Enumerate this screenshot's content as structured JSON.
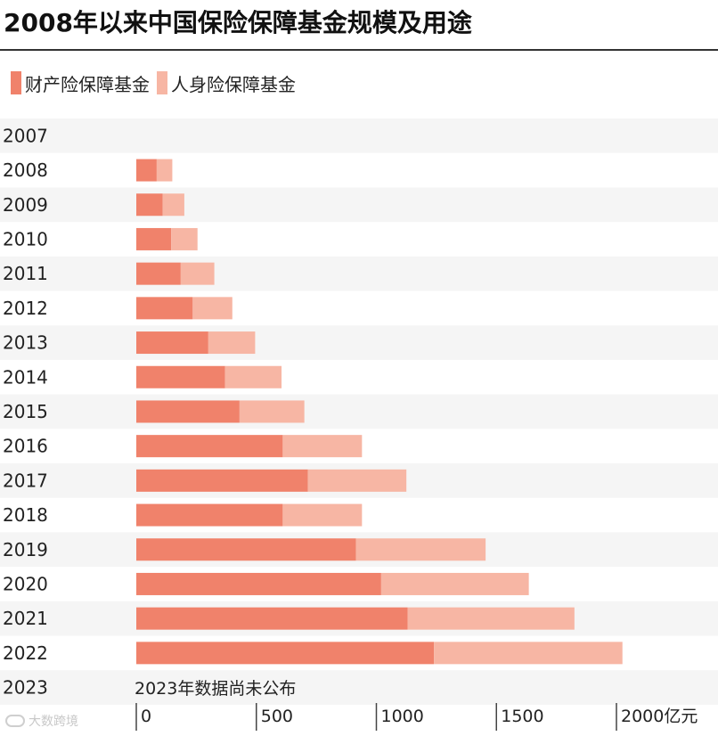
{
  "title": "2008年以来中国保险保障基金规模及用途",
  "legend": [
    {
      "label": "财产险保障基金",
      "color": "#f0826b"
    },
    {
      "label": "人身险保障基金",
      "color": "#f7b6a4"
    }
  ],
  "note": "2023年数据尚未公布",
  "watermark": "大数跨境",
  "chart_data": {
    "type": "bar",
    "orientation": "horizontal",
    "stacked": true,
    "categories": [
      "2007",
      "2008",
      "2009",
      "2010",
      "2011",
      "2012",
      "2013",
      "2014",
      "2015",
      "2016",
      "2017",
      "2018",
      "2019",
      "2020",
      "2021",
      "2022",
      "2023"
    ],
    "series": [
      {
        "name": "财产险保障基金",
        "color": "#f0826b",
        "values": [
          null,
          85,
          110,
          145,
          185,
          235,
          300,
          370,
          430,
          610,
          715,
          610,
          915,
          1020,
          1130,
          1240,
          null
        ]
      },
      {
        "name": "人身险保障基金",
        "color": "#f7b6a4",
        "values": [
          null,
          65,
          90,
          110,
          140,
          165,
          195,
          235,
          270,
          330,
          410,
          330,
          540,
          615,
          695,
          785,
          null
        ]
      }
    ],
    "x_ticks": [
      0,
      500,
      1000,
      1500,
      2000
    ],
    "x_tick_labels": [
      "0",
      "500",
      "1000",
      "1500",
      "2000亿元"
    ],
    "xlim": [
      0,
      2000
    ]
  }
}
